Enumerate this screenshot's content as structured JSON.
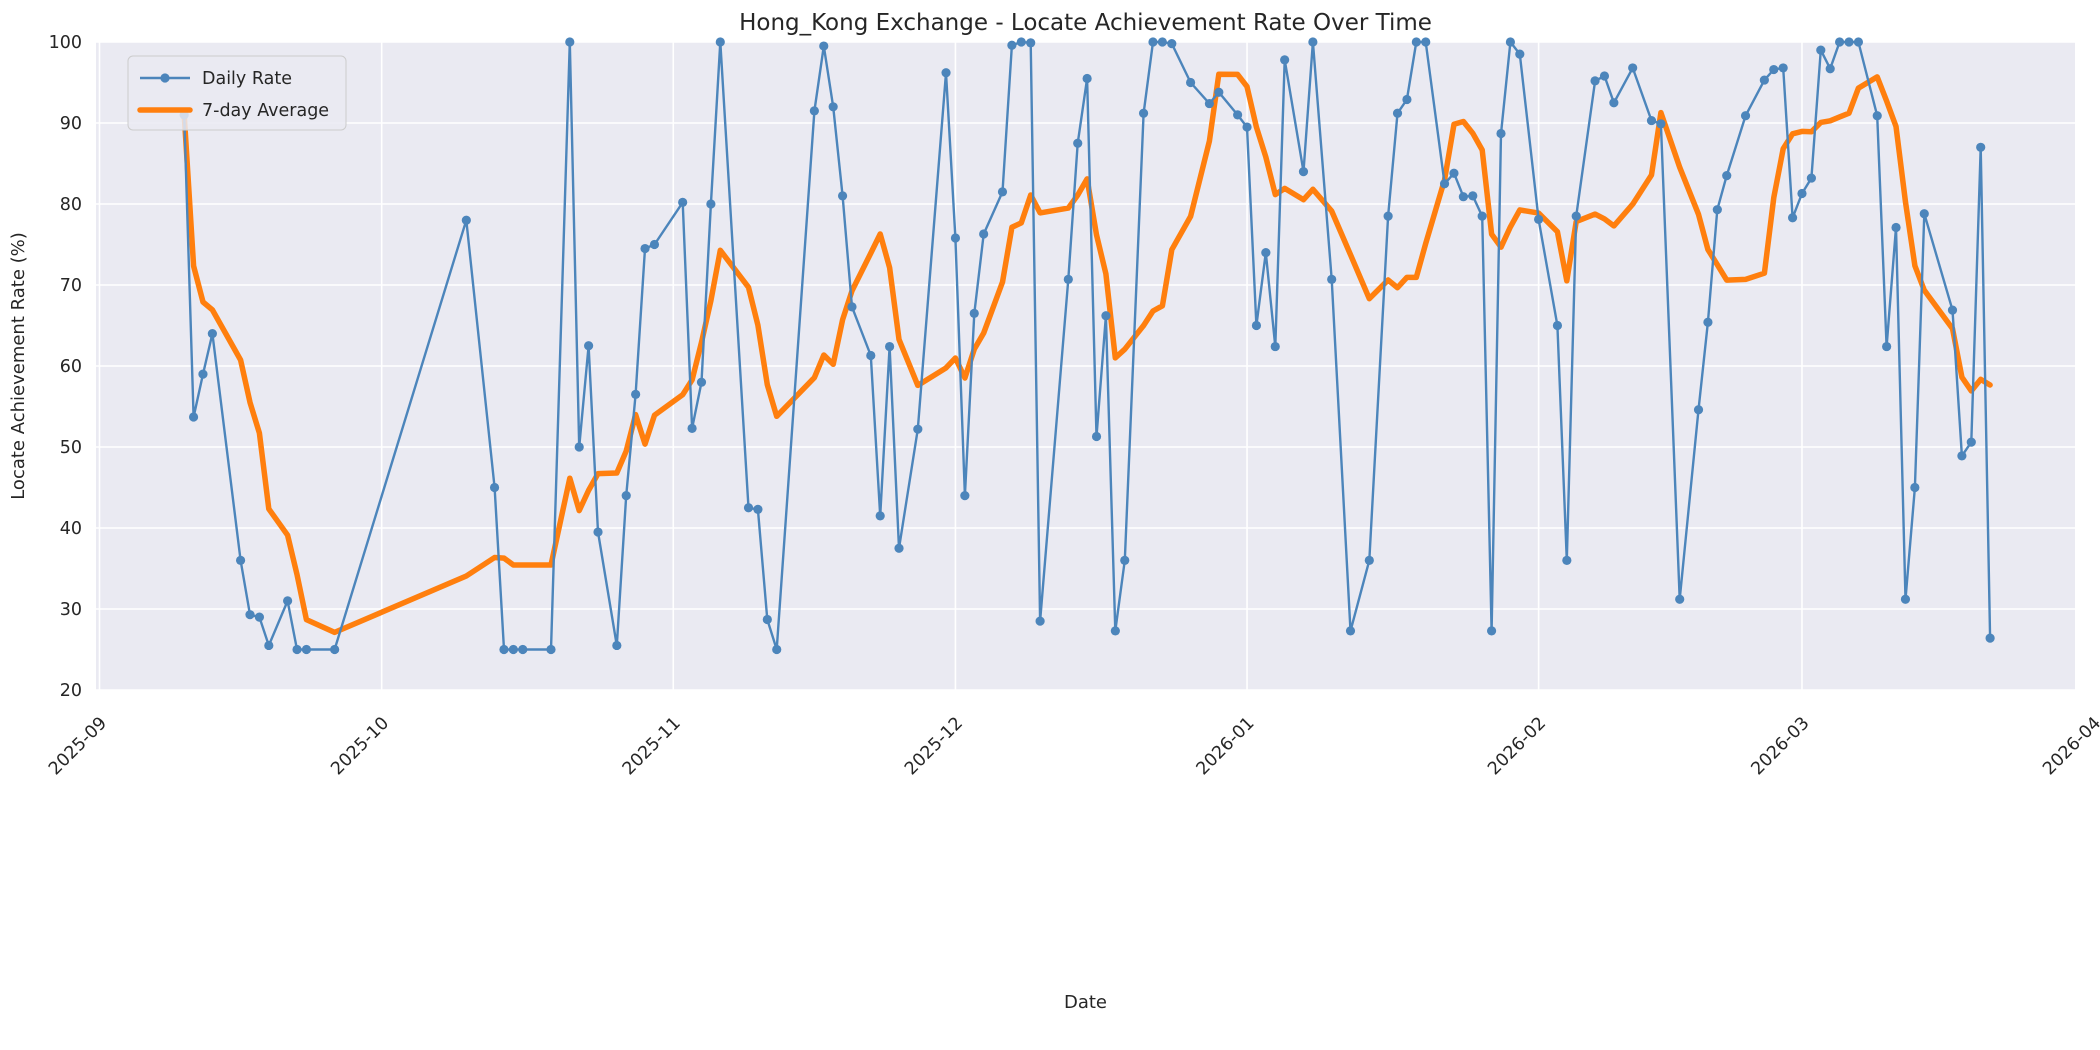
{
  "title": "Hong_Kong Exchange - Locate Achievement Rate Over Time",
  "axes": {
    "xlabel": "Date",
    "ylabel": "Locate Achievement Rate (%)"
  },
  "legend": {
    "items": [
      {
        "label": "Daily Rate"
      },
      {
        "label": "7-day Average"
      }
    ]
  },
  "colors": {
    "daily_line": "#4c85bb",
    "average_line": "#ff7f0e",
    "axes_background": "#eaeaf2",
    "figure_background": "#ffffff",
    "grid": "#ffffff",
    "text": "#262626",
    "legend_background": "#eaeaf2",
    "legend_border": "#cccccc"
  },
  "chart_data": {
    "type": "line",
    "title": "Hong_Kong Exchange - Locate Achievement Rate Over Time",
    "xlabel": "Date",
    "ylabel": "Locate Achievement Rate (%)",
    "ylim": [
      20,
      100
    ],
    "yticks": [
      20,
      30,
      40,
      50,
      60,
      70,
      80,
      90,
      100
    ],
    "xticks": [
      {
        "label": "2025-09",
        "date": "2025-09-01"
      },
      {
        "label": "2025-10",
        "date": "2025-10-01"
      },
      {
        "label": "2025-11",
        "date": "2025-11-01"
      },
      {
        "label": "2025-12",
        "date": "2025-12-01"
      },
      {
        "label": "2026-01",
        "date": "2026-01-01"
      },
      {
        "label": "2026-02",
        "date": "2026-02-01"
      },
      {
        "label": "2026-03",
        "date": "2026-03-01"
      },
      {
        "label": "2026-04",
        "date": "2026-04-01"
      }
    ],
    "grid": true,
    "legend_position": "upper-left",
    "average_window_points": 7,
    "series": [
      {
        "name": "Daily Rate",
        "points": [
          [
            "2025-09-10",
            91.0
          ],
          [
            "2025-09-11",
            53.7
          ],
          [
            "2025-09-12",
            59.0
          ],
          [
            "2025-09-13",
            64.0
          ],
          [
            "2025-09-16",
            36.0
          ],
          [
            "2025-09-17",
            29.3
          ],
          [
            "2025-09-18",
            29.0
          ],
          [
            "2025-09-19",
            25.5
          ],
          [
            "2025-09-21",
            31.0
          ],
          [
            "2025-09-22",
            25.0
          ],
          [
            "2025-09-23",
            25.0
          ],
          [
            "2025-09-26",
            25.0
          ],
          [
            "2025-10-10",
            78.0
          ],
          [
            "2025-10-13",
            45.0
          ],
          [
            "2025-10-14",
            25.0
          ],
          [
            "2025-10-15",
            25.0
          ],
          [
            "2025-10-16",
            25.0
          ],
          [
            "2025-10-19",
            25.0
          ],
          [
            "2025-10-21",
            100.0
          ],
          [
            "2025-10-22",
            50.0
          ],
          [
            "2025-10-23",
            62.5
          ],
          [
            "2025-10-24",
            39.5
          ],
          [
            "2025-10-26",
            25.5
          ],
          [
            "2025-10-27",
            44.0
          ],
          [
            "2025-10-28",
            56.5
          ],
          [
            "2025-10-29",
            74.5
          ],
          [
            "2025-10-30",
            75.0
          ],
          [
            "2025-11-02",
            80.2
          ],
          [
            "2025-11-03",
            52.3
          ],
          [
            "2025-11-04",
            58.0
          ],
          [
            "2025-11-05",
            80.0
          ],
          [
            "2025-11-06",
            100.0
          ],
          [
            "2025-11-09",
            42.5
          ],
          [
            "2025-11-10",
            42.3
          ],
          [
            "2025-11-11",
            28.7
          ],
          [
            "2025-11-12",
            25.0
          ],
          [
            "2025-11-16",
            91.5
          ],
          [
            "2025-11-17",
            99.5
          ],
          [
            "2025-11-18",
            92.0
          ],
          [
            "2025-11-19",
            81.0
          ],
          [
            "2025-11-20",
            67.3
          ],
          [
            "2025-11-22",
            61.3
          ],
          [
            "2025-11-23",
            41.5
          ],
          [
            "2025-11-24",
            62.4
          ],
          [
            "2025-11-25",
            37.5
          ],
          [
            "2025-11-27",
            52.2
          ],
          [
            "2025-11-30",
            96.2
          ],
          [
            "2025-12-01",
            75.8
          ],
          [
            "2025-12-02",
            44.0
          ],
          [
            "2025-12-03",
            66.5
          ],
          [
            "2025-12-04",
            76.3
          ],
          [
            "2025-12-06",
            81.5
          ],
          [
            "2025-12-07",
            99.6
          ],
          [
            "2025-12-08",
            100.0
          ],
          [
            "2025-12-09",
            99.9
          ],
          [
            "2025-12-10",
            28.5
          ],
          [
            "2025-12-13",
            70.7
          ],
          [
            "2025-12-14",
            87.5
          ],
          [
            "2025-12-15",
            95.5
          ],
          [
            "2025-12-16",
            51.3
          ],
          [
            "2025-12-17",
            66.2
          ],
          [
            "2025-12-18",
            27.3
          ],
          [
            "2025-12-19",
            36.0
          ],
          [
            "2025-12-21",
            91.2
          ],
          [
            "2025-12-22",
            100.0
          ],
          [
            "2025-12-23",
            100.0
          ],
          [
            "2025-12-24",
            99.8
          ],
          [
            "2025-12-26",
            95.0
          ],
          [
            "2025-12-28",
            92.4
          ],
          [
            "2025-12-29",
            93.8
          ],
          [
            "2025-12-31",
            91.0
          ],
          [
            "2026-01-01",
            89.5
          ],
          [
            "2026-01-02",
            65.0
          ],
          [
            "2026-01-03",
            74.0
          ],
          [
            "2026-01-04",
            62.4
          ],
          [
            "2026-01-05",
            97.8
          ],
          [
            "2026-01-07",
            84.0
          ],
          [
            "2026-01-08",
            100.0
          ],
          [
            "2026-01-10",
            70.7
          ],
          [
            "2026-01-12",
            27.3
          ],
          [
            "2026-01-14",
            36.0
          ],
          [
            "2026-01-16",
            78.5
          ],
          [
            "2026-01-17",
            91.2
          ],
          [
            "2026-01-18",
            92.9
          ],
          [
            "2026-01-19",
            100.0
          ],
          [
            "2026-01-20",
            100.0
          ],
          [
            "2026-01-22",
            82.5
          ],
          [
            "2026-01-23",
            83.8
          ],
          [
            "2026-01-24",
            80.9
          ],
          [
            "2026-01-25",
            81.0
          ],
          [
            "2026-01-26",
            78.5
          ],
          [
            "2026-01-27",
            27.3
          ],
          [
            "2026-01-28",
            88.7
          ],
          [
            "2026-01-29",
            100.0
          ],
          [
            "2026-01-30",
            98.5
          ],
          [
            "2026-02-01",
            78.1
          ],
          [
            "2026-02-03",
            65.0
          ],
          [
            "2026-02-04",
            36.0
          ],
          [
            "2026-02-05",
            78.5
          ],
          [
            "2026-02-07",
            95.2
          ],
          [
            "2026-02-08",
            95.8
          ],
          [
            "2026-02-09",
            92.5
          ],
          [
            "2026-02-11",
            96.8
          ],
          [
            "2026-02-13",
            90.3
          ],
          [
            "2026-02-14",
            89.9
          ],
          [
            "2026-02-16",
            31.2
          ],
          [
            "2026-02-18",
            54.6
          ],
          [
            "2026-02-19",
            65.4
          ],
          [
            "2026-02-20",
            79.3
          ],
          [
            "2026-02-21",
            83.5
          ],
          [
            "2026-02-23",
            90.9
          ],
          [
            "2026-02-25",
            95.3
          ],
          [
            "2026-02-26",
            96.6
          ],
          [
            "2026-02-27",
            96.8
          ],
          [
            "2026-02-28",
            78.3
          ],
          [
            "2026-03-01",
            81.3
          ],
          [
            "2026-03-02",
            83.2
          ],
          [
            "2026-03-03",
            99.0
          ],
          [
            "2026-03-04",
            96.7
          ],
          [
            "2026-03-05",
            100.0
          ],
          [
            "2026-03-06",
            100.0
          ],
          [
            "2026-03-07",
            100.0
          ],
          [
            "2026-03-09",
            90.9
          ],
          [
            "2026-03-10",
            62.4
          ],
          [
            "2026-03-11",
            77.1
          ],
          [
            "2026-03-12",
            31.2
          ],
          [
            "2026-03-13",
            45.0
          ],
          [
            "2026-03-14",
            78.8
          ],
          [
            "2026-03-17",
            66.9
          ],
          [
            "2026-03-18",
            48.9
          ],
          [
            "2026-03-19",
            50.6
          ],
          [
            "2026-03-20",
            87.0
          ],
          [
            "2026-03-21",
            26.4
          ]
        ]
      },
      {
        "name": "7-day Average",
        "derived": "rolling_mean_of_daily_points_window_7_min_periods_1"
      }
    ]
  }
}
